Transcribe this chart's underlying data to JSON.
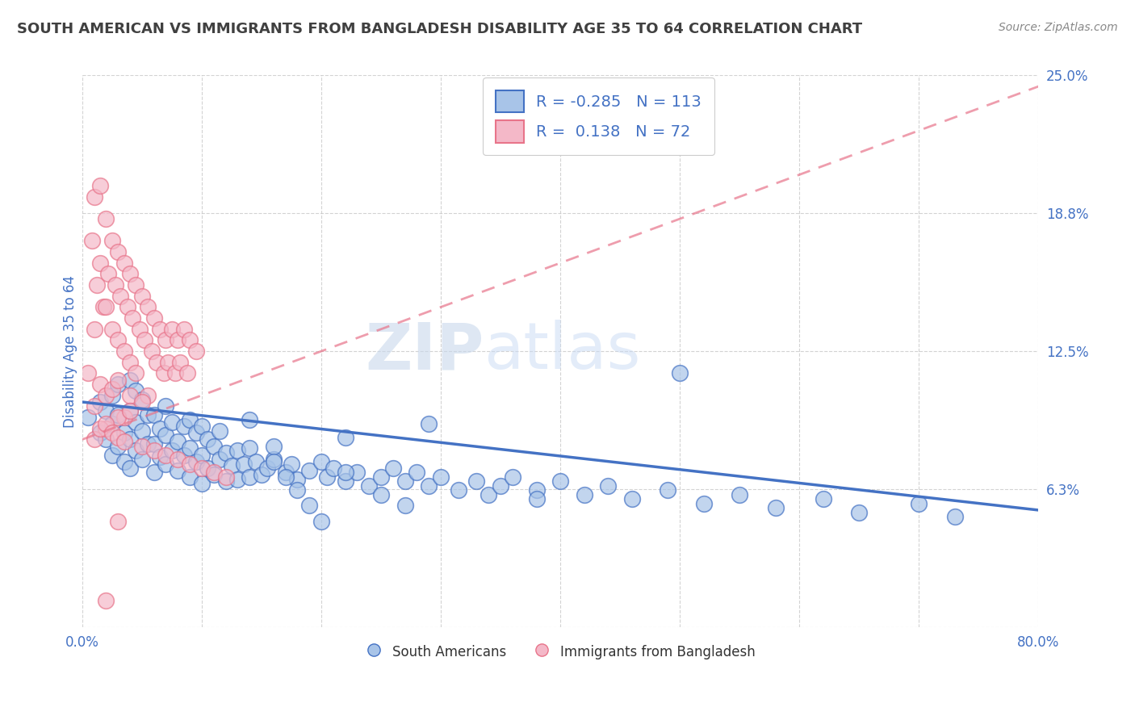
{
  "title": "SOUTH AMERICAN VS IMMIGRANTS FROM BANGLADESH DISABILITY AGE 35 TO 64 CORRELATION CHART",
  "source_text": "Source: ZipAtlas.com",
  "ylabel": "Disability Age 35 to 64",
  "xmin": 0.0,
  "xmax": 0.8,
  "ymin": 0.0,
  "ymax": 0.25,
  "yticks": [
    0.0,
    0.0625,
    0.125,
    0.1875,
    0.25
  ],
  "ytick_labels": [
    "",
    "6.3%",
    "12.5%",
    "18.8%",
    "25.0%"
  ],
  "xtick_labels": [
    "0.0%",
    "",
    "",
    "",
    "",
    "",
    "",
    "",
    "80.0%"
  ],
  "xticks": [
    0.0,
    0.1,
    0.2,
    0.3,
    0.4,
    0.5,
    0.6,
    0.7,
    0.8
  ],
  "legend_entry_blue": {
    "label": "South Americans",
    "R": -0.285,
    "N": 113
  },
  "legend_entry_pink": {
    "label": "Immigrants from Bangladesh",
    "R": 0.138,
    "N": 72
  },
  "blue_trend": [
    0.0,
    0.102,
    0.8,
    0.053
  ],
  "pink_trend": [
    0.0,
    0.085,
    0.8,
    0.245
  ],
  "blue_line_color": "#4472c4",
  "pink_line_color": "#e8748a",
  "blue_scatter_face": "#a8c4e8",
  "blue_scatter_edge": "#4472c4",
  "pink_scatter_face": "#f4b8c8",
  "pink_scatter_edge": "#e8748a",
  "background_color": "#ffffff",
  "watermark_zip": "ZIP",
  "watermark_atlas": "atlas",
  "title_color": "#404040",
  "axis_label_color": "#4472c4",
  "tick_color": "#4472c4",
  "grid_color": "#c8c8c8",
  "south_american_x": [
    0.005,
    0.015,
    0.015,
    0.02,
    0.02,
    0.025,
    0.025,
    0.025,
    0.03,
    0.03,
    0.03,
    0.035,
    0.035,
    0.04,
    0.04,
    0.04,
    0.04,
    0.045,
    0.045,
    0.045,
    0.05,
    0.05,
    0.05,
    0.055,
    0.055,
    0.06,
    0.06,
    0.06,
    0.065,
    0.065,
    0.07,
    0.07,
    0.07,
    0.075,
    0.075,
    0.08,
    0.08,
    0.085,
    0.085,
    0.09,
    0.09,
    0.09,
    0.095,
    0.095,
    0.1,
    0.1,
    0.1,
    0.105,
    0.105,
    0.11,
    0.11,
    0.115,
    0.115,
    0.12,
    0.12,
    0.125,
    0.13,
    0.13,
    0.135,
    0.14,
    0.14,
    0.145,
    0.15,
    0.155,
    0.16,
    0.16,
    0.17,
    0.175,
    0.18,
    0.19,
    0.2,
    0.205,
    0.21,
    0.22,
    0.23,
    0.24,
    0.25,
    0.26,
    0.27,
    0.28,
    0.29,
    0.3,
    0.315,
    0.33,
    0.34,
    0.35,
    0.36,
    0.38,
    0.4,
    0.42,
    0.44,
    0.46,
    0.49,
    0.52,
    0.55,
    0.58,
    0.62,
    0.65,
    0.7,
    0.73,
    0.29,
    0.5,
    0.38,
    0.22,
    0.14,
    0.16,
    0.17,
    0.18,
    0.19,
    0.2,
    0.22,
    0.25,
    0.27
  ],
  "south_american_y": [
    0.095,
    0.088,
    0.102,
    0.085,
    0.098,
    0.078,
    0.092,
    0.105,
    0.082,
    0.096,
    0.11,
    0.075,
    0.088,
    0.072,
    0.085,
    0.098,
    0.112,
    0.08,
    0.093,
    0.107,
    0.076,
    0.089,
    0.103,
    0.083,
    0.096,
    0.07,
    0.083,
    0.096,
    0.077,
    0.09,
    0.074,
    0.087,
    0.1,
    0.08,
    0.093,
    0.071,
    0.084,
    0.078,
    0.091,
    0.068,
    0.081,
    0.094,
    0.075,
    0.088,
    0.065,
    0.078,
    0.091,
    0.072,
    0.085,
    0.069,
    0.082,
    0.076,
    0.089,
    0.066,
    0.079,
    0.073,
    0.067,
    0.08,
    0.074,
    0.068,
    0.081,
    0.075,
    0.069,
    0.072,
    0.076,
    0.082,
    0.07,
    0.074,
    0.067,
    0.071,
    0.075,
    0.068,
    0.072,
    0.066,
    0.07,
    0.064,
    0.068,
    0.072,
    0.066,
    0.07,
    0.064,
    0.068,
    0.062,
    0.066,
    0.06,
    0.064,
    0.068,
    0.062,
    0.066,
    0.06,
    0.064,
    0.058,
    0.062,
    0.056,
    0.06,
    0.054,
    0.058,
    0.052,
    0.056,
    0.05,
    0.092,
    0.115,
    0.058,
    0.086,
    0.094,
    0.075,
    0.068,
    0.062,
    0.055,
    0.048,
    0.07,
    0.06,
    0.055
  ],
  "bangladesh_x": [
    0.005,
    0.008,
    0.01,
    0.01,
    0.012,
    0.015,
    0.015,
    0.018,
    0.02,
    0.02,
    0.022,
    0.025,
    0.025,
    0.028,
    0.03,
    0.03,
    0.032,
    0.035,
    0.035,
    0.038,
    0.04,
    0.04,
    0.042,
    0.045,
    0.045,
    0.048,
    0.05,
    0.052,
    0.055,
    0.055,
    0.058,
    0.06,
    0.062,
    0.065,
    0.068,
    0.07,
    0.072,
    0.075,
    0.078,
    0.08,
    0.082,
    0.085,
    0.088,
    0.09,
    0.095,
    0.01,
    0.015,
    0.02,
    0.025,
    0.03,
    0.035,
    0.04,
    0.02,
    0.03,
    0.04,
    0.05,
    0.01,
    0.015,
    0.02,
    0.025,
    0.03,
    0.035,
    0.05,
    0.06,
    0.07,
    0.08,
    0.09,
    0.1,
    0.11,
    0.12,
    0.02,
    0.03
  ],
  "bangladesh_y": [
    0.115,
    0.175,
    0.135,
    0.195,
    0.155,
    0.2,
    0.165,
    0.145,
    0.185,
    0.145,
    0.16,
    0.175,
    0.135,
    0.155,
    0.17,
    0.13,
    0.15,
    0.165,
    0.125,
    0.145,
    0.16,
    0.12,
    0.14,
    0.155,
    0.115,
    0.135,
    0.15,
    0.13,
    0.145,
    0.105,
    0.125,
    0.14,
    0.12,
    0.135,
    0.115,
    0.13,
    0.12,
    0.135,
    0.115,
    0.13,
    0.12,
    0.135,
    0.115,
    0.13,
    0.125,
    0.1,
    0.11,
    0.105,
    0.108,
    0.112,
    0.095,
    0.105,
    0.09,
    0.095,
    0.098,
    0.102,
    0.085,
    0.09,
    0.092,
    0.088,
    0.086,
    0.084,
    0.082,
    0.08,
    0.078,
    0.076,
    0.074,
    0.072,
    0.07,
    0.068,
    0.012,
    0.048
  ]
}
